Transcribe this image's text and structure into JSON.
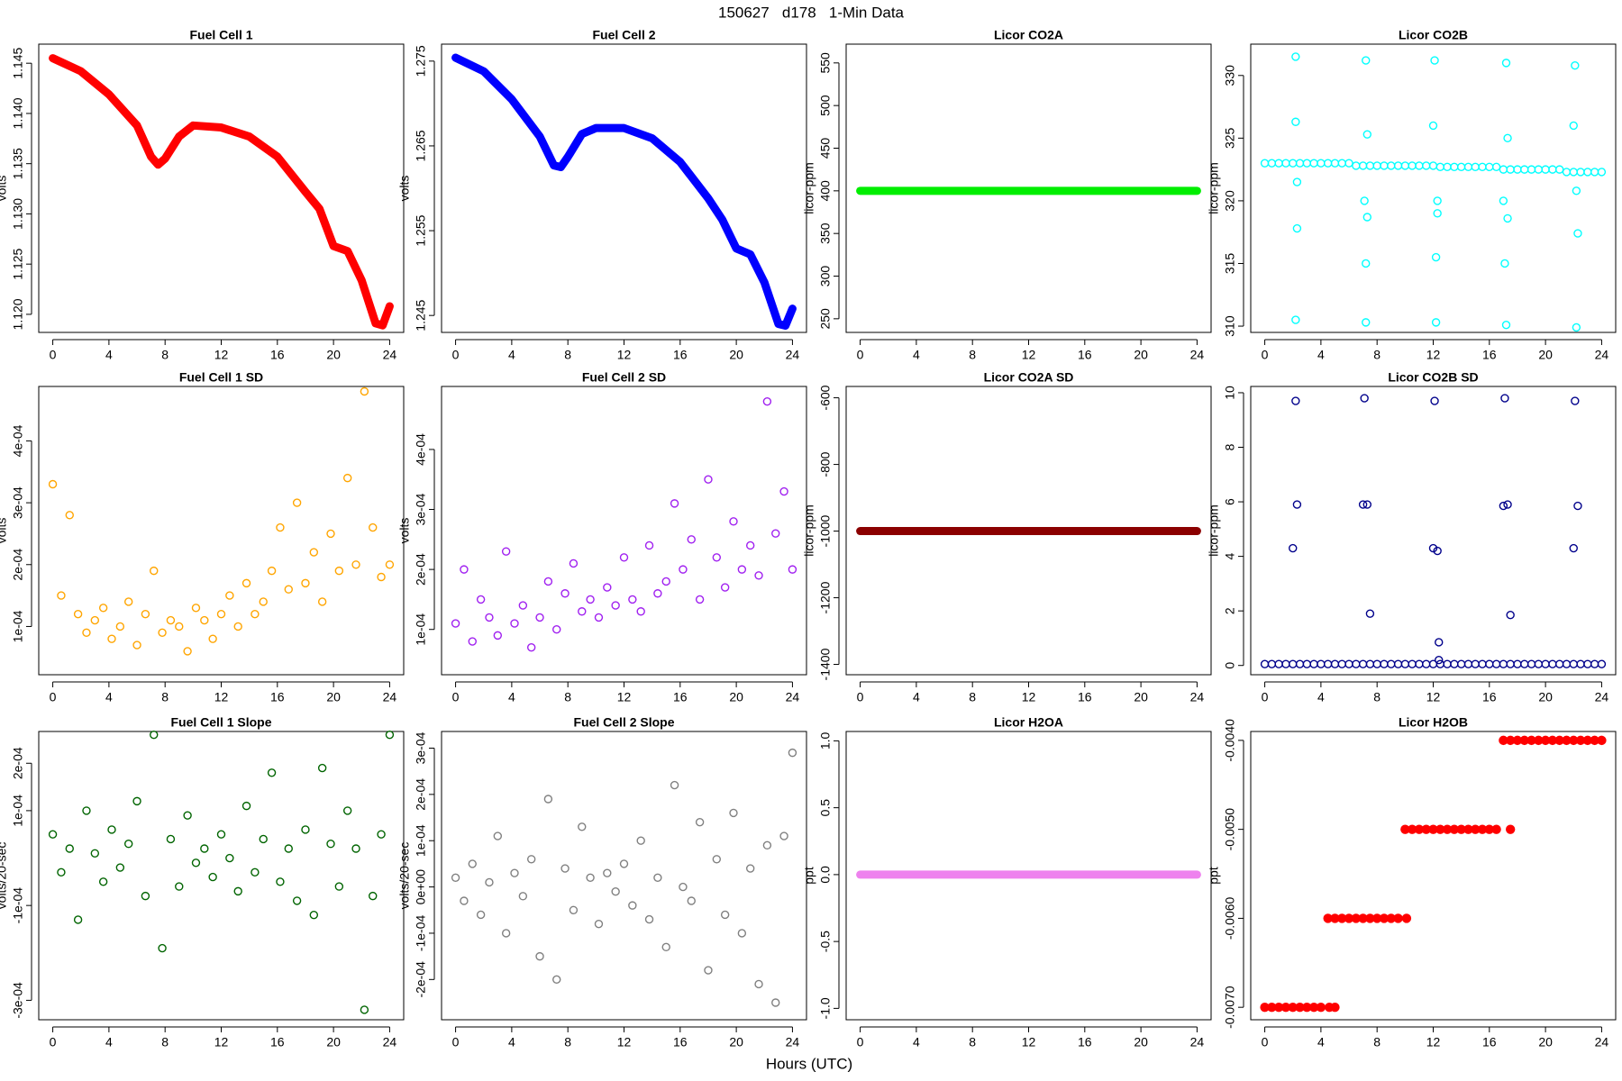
{
  "title": "150627   d178   1-Min Data",
  "x_axis_label": "Hours (UTC)",
  "chart_data": [
    {
      "type": "line",
      "title": "Fuel Cell 1",
      "ylabel": "volts",
      "color": "#ff0000",
      "x": [
        0,
        2,
        4,
        6,
        7,
        7.5,
        8,
        9,
        10,
        12,
        14,
        16,
        18,
        19,
        20,
        21,
        22,
        23,
        23.5,
        24
      ],
      "values": [
        1.1455,
        1.1442,
        1.1419,
        1.1388,
        1.1357,
        1.1349,
        1.1355,
        1.1377,
        1.1388,
        1.1386,
        1.1377,
        1.1357,
        1.1322,
        1.1305,
        1.1268,
        1.1263,
        1.1234,
        1.1191,
        1.1189,
        1.1208
      ],
      "xlim": [
        -1,
        25
      ],
      "xticks": [
        0,
        4,
        8,
        12,
        16,
        20,
        24
      ],
      "ylim": [
        1.1182,
        1.1469
      ],
      "yticks": [
        {
          "value": 1.12,
          "label": "1.120"
        },
        1.125,
        {
          "value": 1.13,
          "label": "1.130"
        },
        1.135,
        {
          "value": 1.14,
          "label": "1.140"
        },
        1.145
      ]
    },
    {
      "type": "line",
      "title": "Fuel Cell 2",
      "ylabel": "volts",
      "color": "#0000ff",
      "x": [
        0,
        2,
        4,
        6,
        7,
        7.5,
        8,
        9,
        10,
        12,
        14,
        16,
        18,
        19,
        20,
        21,
        22,
        23,
        23.5,
        24
      ],
      "values": [
        1.2754,
        1.2738,
        1.2705,
        1.2661,
        1.2627,
        1.2625,
        1.2637,
        1.2664,
        1.2671,
        1.2671,
        1.2659,
        1.2631,
        1.2588,
        1.2563,
        1.2529,
        1.2522,
        1.2489,
        1.244,
        1.2438,
        1.2458
      ],
      "xlim": [
        -1,
        25
      ],
      "xticks": [
        0,
        4,
        8,
        12,
        16,
        20,
        24
      ],
      "ylim": [
        1.243,
        1.277
      ],
      "yticks": [
        1.245,
        1.255,
        1.265,
        1.275
      ]
    },
    {
      "type": "line",
      "title": "Licor CO2A",
      "ylabel": "licor-ppm",
      "color": "#00ee00",
      "x": [
        0,
        24
      ],
      "values": [
        400,
        400
      ],
      "xlim": [
        -1,
        25
      ],
      "xticks": [
        0,
        4,
        8,
        12,
        16,
        20,
        24
      ],
      "ylim": [
        234,
        572
      ],
      "yticks": [
        250,
        300,
        350,
        400,
        450,
        500,
        550
      ]
    },
    {
      "type": "scatter",
      "title": "Licor CO2B",
      "ylabel": "licor-ppm",
      "color": "#00ffff",
      "marker": "open",
      "x": [
        0,
        0.5,
        1,
        1.5,
        2,
        2.5,
        3,
        3.5,
        4,
        4.5,
        5,
        5.5,
        6,
        6.5,
        7,
        7.5,
        8,
        8.5,
        9,
        9.5,
        10,
        10.5,
        11,
        11.5,
        12,
        12.5,
        13,
        13.5,
        14,
        14.5,
        15,
        15.5,
        16,
        16.5,
        17,
        17.5,
        18,
        18.5,
        19,
        19.5,
        20,
        20.5,
        21,
        21.5,
        22,
        22.5,
        23,
        23.5,
        24,
        2.2,
        2.2,
        2.3,
        2.3,
        2.2,
        7.2,
        7.3,
        7.1,
        7.3,
        7.2,
        7.2,
        12.1,
        12,
        12.3,
        12.3,
        12.2,
        12.2,
        17.2,
        17.3,
        17,
        17.3,
        17.1,
        17.2,
        22.1,
        22,
        22.2,
        22.3,
        22.2
      ],
      "values": [
        323,
        323,
        323,
        323,
        323,
        323,
        323,
        323,
        323,
        323,
        323,
        323,
        323,
        322.8,
        322.8,
        322.8,
        322.8,
        322.8,
        322.8,
        322.8,
        322.8,
        322.8,
        322.8,
        322.8,
        322.8,
        322.7,
        322.7,
        322.7,
        322.7,
        322.7,
        322.7,
        322.7,
        322.7,
        322.7,
        322.5,
        322.5,
        322.5,
        322.5,
        322.5,
        322.5,
        322.5,
        322.5,
        322.5,
        322.3,
        322.3,
        322.3,
        322.3,
        322.3,
        322.3,
        331.5,
        326.3,
        321.5,
        317.8,
        310.5,
        331.2,
        325.3,
        320,
        318.7,
        315,
        310.3,
        331.2,
        326,
        320,
        319,
        315.5,
        310.3,
        331,
        325,
        320,
        318.6,
        315,
        310.1,
        330.8,
        326,
        320.8,
        317.4,
        309.9
      ],
      "xlim": [
        -1,
        25
      ],
      "xticks": [
        0,
        4,
        8,
        12,
        16,
        20,
        24
      ],
      "ylim": [
        309.5,
        332.5
      ],
      "yticks": [
        310,
        315,
        320,
        325,
        330
      ]
    },
    {
      "type": "scatter",
      "title": "Fuel Cell 1 SD",
      "ylabel": "volts",
      "color": "#ffa500",
      "marker": "open",
      "x": [
        0,
        0.6,
        1.2,
        1.8,
        2.4,
        3,
        3.6,
        4.2,
        4.8,
        5.4,
        6,
        6.6,
        7.2,
        7.8,
        8.4,
        9,
        9.6,
        10.2,
        10.8,
        11.4,
        12,
        12.6,
        13.2,
        13.8,
        14.4,
        15,
        15.6,
        16.2,
        16.8,
        17.4,
        18,
        18.6,
        19.2,
        19.8,
        20.4,
        21,
        21.6,
        22.2,
        22.8,
        23.4,
        24
      ],
      "values": [
        0.00033,
        0.00015,
        0.00028,
        0.00012,
        9e-05,
        0.00011,
        0.00013,
        8e-05,
        0.0001,
        0.00014,
        7e-05,
        0.00012,
        0.00019,
        9e-05,
        0.00011,
        0.0001,
        6e-05,
        0.00013,
        0.00011,
        8e-05,
        0.00012,
        0.00015,
        0.0001,
        0.00017,
        0.00012,
        0.00014,
        0.00019,
        0.00026,
        0.00016,
        0.0003,
        0.00017,
        0.00022,
        0.00014,
        0.00025,
        0.00019,
        0.00034,
        0.0002,
        0.00048,
        0.00026,
        0.00018,
        0.0002
      ],
      "xlim": [
        -1,
        25
      ],
      "xticks": [
        0,
        4,
        8,
        12,
        16,
        20,
        24
      ],
      "ylim": [
        2.2e-05,
        0.000488
      ],
      "yticks": [
        {
          "value": 0.0001,
          "label": "1e-04"
        },
        {
          "value": 0.0002,
          "label": "2e-04"
        },
        {
          "value": 0.0003,
          "label": "3e-04"
        },
        {
          "value": 0.0004,
          "label": "4e-04"
        }
      ]
    },
    {
      "type": "scatter",
      "title": "Fuel Cell 2 SD",
      "ylabel": "volts",
      "color": "#a020f0",
      "marker": "open",
      "x": [
        0,
        0.6,
        1.2,
        1.8,
        2.4,
        3,
        3.6,
        4.2,
        4.8,
        5.4,
        6,
        6.6,
        7.2,
        7.8,
        8.4,
        9,
        9.6,
        10.2,
        10.8,
        11.4,
        12,
        12.6,
        13.2,
        13.8,
        14.4,
        15,
        15.6,
        16.2,
        16.8,
        17.4,
        18,
        18.6,
        19.2,
        19.8,
        20.4,
        21,
        21.6,
        22.2,
        22.8,
        23.4,
        24
      ],
      "values": [
        0.00011,
        0.0002,
        8e-05,
        0.00015,
        0.00012,
        9e-05,
        0.00023,
        0.00011,
        0.00014,
        7e-05,
        0.00012,
        0.00018,
        0.0001,
        0.00016,
        0.00021,
        0.00013,
        0.00015,
        0.00012,
        0.00017,
        0.00014,
        0.00022,
        0.00015,
        0.00013,
        0.00024,
        0.00016,
        0.00018,
        0.00031,
        0.0002,
        0.00025,
        0.00015,
        0.00035,
        0.00022,
        0.00017,
        0.00028,
        0.0002,
        0.00024,
        0.00019,
        0.00048,
        0.00026,
        0.00033,
        0.0002
      ],
      "xlim": [
        -1,
        25
      ],
      "xticks": [
        0,
        4,
        8,
        12,
        16,
        20,
        24
      ],
      "ylim": [
        2.45e-05,
        0.000505
      ],
      "yticks": [
        {
          "value": 0.0001,
          "label": "1e-04"
        },
        {
          "value": 0.0002,
          "label": "2e-04"
        },
        {
          "value": 0.0003,
          "label": "3e-04"
        },
        {
          "value": 0.0004,
          "label": "4e-04"
        }
      ]
    },
    {
      "type": "line",
      "title": "Licor CO2A SD",
      "ylabel": "licor-ppm",
      "color": "#8b0000",
      "x": [
        0,
        24
      ],
      "values": [
        -1000,
        -1000
      ],
      "xlim": [
        -1,
        25
      ],
      "xticks": [
        0,
        4,
        8,
        12,
        16,
        20,
        24
      ],
      "ylim": [
        -1431,
        -566
      ],
      "yticks": [
        -1400,
        -1200,
        -1000,
        -800,
        -600
      ]
    },
    {
      "type": "scatter",
      "title": "Licor CO2B SD",
      "ylabel": "licor-ppm",
      "color": "#00008b",
      "marker": "open",
      "x": [
        0,
        0.5,
        1,
        1.5,
        2,
        2.5,
        3,
        3.5,
        4,
        4.5,
        5,
        5.5,
        6,
        6.5,
        7,
        7.5,
        8,
        8.5,
        9,
        9.5,
        10,
        10.5,
        11,
        11.5,
        12,
        12.5,
        13,
        13.5,
        14,
        14.5,
        15,
        15.5,
        16,
        16.5,
        17,
        17.5,
        18,
        18.5,
        19,
        19.5,
        20,
        20.5,
        21,
        21.5,
        22,
        22.5,
        23,
        23.5,
        24,
        2.2,
        2.3,
        2,
        7.1,
        7,
        7.3,
        7.5,
        12.1,
        12,
        12.3,
        12.4,
        12.4,
        17.1,
        17,
        17.3,
        17.5,
        22.1,
        22.3,
        22
      ],
      "values": [
        0.05,
        0.05,
        0.05,
        0.05,
        0.05,
        0.05,
        0.05,
        0.05,
        0.05,
        0.05,
        0.05,
        0.05,
        0.05,
        0.05,
        0.05,
        0.05,
        0.05,
        0.05,
        0.05,
        0.05,
        0.05,
        0.05,
        0.05,
        0.05,
        0.05,
        0.05,
        0.05,
        0.05,
        0.05,
        0.05,
        0.05,
        0.05,
        0.05,
        0.05,
        0.05,
        0.05,
        0.05,
        0.05,
        0.05,
        0.05,
        0.05,
        0.05,
        0.05,
        0.05,
        0.05,
        0.05,
        0.05,
        0.05,
        0.05,
        9.7,
        5.9,
        4.3,
        9.8,
        5.9,
        5.9,
        1.9,
        9.7,
        4.3,
        4.2,
        0.85,
        0.2,
        9.8,
        5.85,
        5.9,
        1.85,
        9.7,
        5.85,
        4.3
      ],
      "xlim": [
        -1,
        25
      ],
      "xticks": [
        0,
        4,
        8,
        12,
        16,
        20,
        24
      ],
      "ylim": [
        -0.34,
        10.23
      ],
      "yticks": [
        0,
        2,
        4,
        6,
        8,
        10
      ]
    },
    {
      "type": "scatter",
      "title": "Fuel Cell 1 Slope",
      "ylabel": "volts/20-sec",
      "color": "#006400",
      "marker": "open",
      "x": [
        0,
        0.6,
        1.2,
        1.8,
        2.4,
        3,
        3.6,
        4.2,
        4.8,
        5.4,
        6,
        6.6,
        7.2,
        7.8,
        8.4,
        9,
        9.6,
        10.2,
        10.8,
        11.4,
        12,
        12.6,
        13.2,
        13.8,
        14.4,
        15,
        15.6,
        16.2,
        16.8,
        17.4,
        18,
        18.6,
        19.2,
        19.8,
        20.4,
        21,
        21.6,
        22.2,
        22.8,
        23.4,
        24
      ],
      "values": [
        5e-05,
        -3e-05,
        2e-05,
        -0.00013,
        0.0001,
        1e-05,
        -5e-05,
        6e-05,
        -2e-05,
        3e-05,
        0.00012,
        -8e-05,
        0.00026,
        -0.00019,
        4e-05,
        -6e-05,
        9e-05,
        -1e-05,
        2e-05,
        -4e-05,
        5e-05,
        0,
        -7e-05,
        0.00011,
        -3e-05,
        4e-05,
        0.00018,
        -5e-05,
        2e-05,
        -9e-05,
        6e-05,
        -0.00012,
        0.00019,
        3e-05,
        -6e-05,
        0.0001,
        2e-05,
        -0.00032,
        -8e-05,
        5e-05,
        0.00026
      ],
      "xlim": [
        -1,
        25
      ],
      "xticks": [
        0,
        4,
        8,
        12,
        16,
        20,
        24
      ],
      "ylim": [
        -0.000341,
        0.000267
      ],
      "yticks": [
        {
          "value": -0.0003,
          "label": "-3e-04"
        },
        {
          "value": -0.0001,
          "label": "-1e-04"
        },
        {
          "value": 0.0001,
          "label": "1e-04"
        },
        {
          "value": 0.0002,
          "label": "2e-04"
        }
      ]
    },
    {
      "type": "scatter",
      "title": "Fuel Cell 2 Slope",
      "ylabel": "volts/20-sec",
      "color": "#808080",
      "marker": "open",
      "x": [
        0,
        0.6,
        1.2,
        1.8,
        2.4,
        3,
        3.6,
        4.2,
        4.8,
        5.4,
        6,
        6.6,
        7.2,
        7.8,
        8.4,
        9,
        9.6,
        10.2,
        10.8,
        11.4,
        12,
        12.6,
        13.2,
        13.8,
        14.4,
        15,
        15.6,
        16.2,
        16.8,
        17.4,
        18,
        18.6,
        19.2,
        19.8,
        20.4,
        21,
        21.6,
        22.2,
        22.8,
        23.4,
        24
      ],
      "values": [
        2e-05,
        -3e-05,
        5e-05,
        -6e-05,
        1e-05,
        0.00011,
        -0.0001,
        3e-05,
        -2e-05,
        6e-05,
        -0.00015,
        0.00019,
        -0.0002,
        4e-05,
        -5e-05,
        0.00013,
        2e-05,
        -8e-05,
        3e-05,
        -1e-05,
        5e-05,
        -4e-05,
        0.0001,
        -7e-05,
        2e-05,
        -0.00013,
        0.00022,
        0,
        -3e-05,
        0.00014,
        -0.00018,
        6e-05,
        -6e-05,
        0.00016,
        -0.0001,
        4e-05,
        -0.00021,
        9e-05,
        -0.00025,
        0.00011,
        0.00029
      ],
      "xlim": [
        -1,
        25
      ],
      "xticks": [
        0,
        4,
        8,
        12,
        16,
        20,
        24
      ],
      "ylim": [
        -0.000287,
        0.000336
      ],
      "yticks": [
        {
          "value": -0.0002,
          "label": "-2e-04"
        },
        {
          "value": -0.0001,
          "label": "-1e-04"
        },
        {
          "value": 0,
          "label": "0e+00"
        },
        {
          "value": 0.0001,
          "label": "1e-04"
        },
        {
          "value": 0.0002,
          "label": "2e-04"
        },
        {
          "value": 0.0003,
          "label": "3e-04"
        }
      ]
    },
    {
      "type": "line",
      "title": "Licor H2OA",
      "ylabel": "ppt",
      "color": "#ee82ee",
      "x": [
        0,
        24
      ],
      "values": [
        0,
        0
      ],
      "xlim": [
        -1,
        25
      ],
      "xticks": [
        0,
        4,
        8,
        12,
        16,
        20,
        24
      ],
      "ylim": [
        -1.085,
        1.07
      ],
      "yticks": [
        {
          "value": -1,
          "label": "-1.0"
        },
        -0.5,
        {
          "value": 0,
          "label": "0.0"
        },
        0.5,
        {
          "value": 1,
          "label": "1.0"
        }
      ]
    },
    {
      "type": "scatter",
      "title": "Licor H2OB",
      "ylabel": "ppt",
      "color": "#ff0000",
      "marker": "filled",
      "x": [
        0,
        0.5,
        1,
        1.5,
        2,
        2.5,
        3,
        3.5,
        4,
        4.5,
        5,
        5.5,
        6,
        6.5,
        7,
        7.5,
        8,
        8.5,
        9,
        9.5,
        10,
        10.5,
        11,
        11.5,
        12,
        12.5,
        13,
        13.5,
        14,
        14.5,
        15,
        15.5,
        16,
        16.5,
        17,
        17.5,
        18,
        18.5,
        19,
        19.5,
        20,
        20.5,
        21,
        21.5,
        22,
        22.5,
        23,
        23.5,
        24,
        4.6,
        5,
        10.1,
        17.5
      ],
      "values": [
        -0.007,
        -0.007,
        -0.007,
        -0.007,
        -0.007,
        -0.007,
        -0.007,
        -0.007,
        -0.007,
        -0.006,
        -0.006,
        -0.006,
        -0.006,
        -0.006,
        -0.006,
        -0.006,
        -0.006,
        -0.006,
        -0.006,
        -0.006,
        -0.005,
        -0.005,
        -0.005,
        -0.005,
        -0.005,
        -0.005,
        -0.005,
        -0.005,
        -0.005,
        -0.005,
        -0.005,
        -0.005,
        -0.005,
        -0.005,
        -0.004,
        -0.004,
        -0.004,
        -0.004,
        -0.004,
        -0.004,
        -0.004,
        -0.004,
        -0.004,
        -0.004,
        -0.004,
        -0.004,
        -0.004,
        -0.004,
        -0.004,
        -0.007,
        -0.007,
        -0.006,
        -0.005
      ],
      "xlim": [
        -1,
        25
      ],
      "xticks": [
        0,
        4,
        8,
        12,
        16,
        20,
        24
      ],
      "ylim": [
        -0.00714,
        -0.0039
      ],
      "yticks": [
        {
          "value": -0.007,
          "label": "-0.0070"
        },
        {
          "value": -0.006,
          "label": "-0.0060"
        },
        {
          "value": -0.005,
          "label": "-0.0050"
        },
        {
          "value": -0.004,
          "label": "-0.0040"
        }
      ]
    }
  ]
}
